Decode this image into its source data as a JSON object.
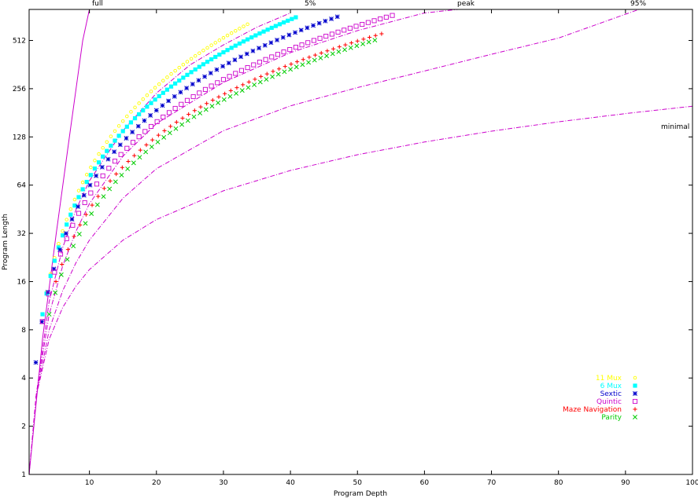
{
  "chart_data": {
    "type": "scatter",
    "xlabel": "Program Depth",
    "ylabel": "Program Length",
    "xlim": [
      1,
      100
    ],
    "ylim": [
      1,
      800
    ],
    "yscale": "log2",
    "xticks": [
      10,
      20,
      30,
      40,
      50,
      60,
      70,
      80,
      90,
      100
    ],
    "yticks": [
      1,
      2,
      4,
      8,
      16,
      32,
      64,
      128,
      256,
      512
    ],
    "grid": false,
    "legend_position": "bottom-right",
    "reference_curves": [
      {
        "label": "full",
        "color": "#cc00cc",
        "points": [
          [
            1,
            1
          ],
          [
            3,
            7
          ],
          [
            5,
            31
          ],
          [
            7,
            127
          ],
          [
            9,
            511
          ],
          [
            10,
            800
          ]
        ]
      },
      {
        "label": "5%",
        "color": "#cc00cc",
        "points": [
          [
            2,
            3
          ],
          [
            4,
            12
          ],
          [
            6,
            26
          ],
          [
            8,
            45
          ],
          [
            10,
            68
          ],
          [
            15,
            140
          ],
          [
            20,
            240
          ],
          [
            25,
            360
          ],
          [
            30,
            480
          ],
          [
            35,
            620
          ],
          [
            40,
            760
          ]
        ]
      },
      {
        "label": "peak",
        "color": "#cc00cc",
        "points": [
          [
            2,
            3
          ],
          [
            4,
            10
          ],
          [
            6,
            20
          ],
          [
            8,
            33
          ],
          [
            10,
            49
          ],
          [
            15,
            97
          ],
          [
            20,
            155
          ],
          [
            30,
            280
          ],
          [
            40,
            430
          ],
          [
            50,
            590
          ],
          [
            60,
            760
          ],
          [
            65,
            800
          ]
        ]
      },
      {
        "label": "95%",
        "color": "#cc00cc",
        "points": [
          [
            2,
            3
          ],
          [
            4,
            8
          ],
          [
            6,
            14
          ],
          [
            8,
            21
          ],
          [
            10,
            29
          ],
          [
            15,
            53
          ],
          [
            20,
            81
          ],
          [
            30,
            140
          ],
          [
            40,
            200
          ],
          [
            50,
            260
          ],
          [
            60,
            330
          ],
          [
            70,
            420
          ],
          [
            80,
            530
          ],
          [
            92,
            800
          ]
        ]
      },
      {
        "label": "minimal",
        "color": "#cc00cc",
        "points": [
          [
            1,
            1
          ],
          [
            2,
            3
          ],
          [
            4,
            7
          ],
          [
            6,
            11
          ],
          [
            8,
            15
          ],
          [
            10,
            19
          ],
          [
            15,
            29
          ],
          [
            20,
            39
          ],
          [
            30,
            59
          ],
          [
            40,
            79
          ],
          [
            50,
            99
          ],
          [
            60,
            119
          ],
          [
            70,
            139
          ],
          [
            80,
            159
          ],
          [
            90,
            179
          ],
          [
            100,
            199
          ]
        ]
      }
    ],
    "series": [
      {
        "name": "11 Mux",
        "color": "#ffff00",
        "marker": "circle",
        "range": [
          3,
          34
        ],
        "start": 10,
        "end": 660
      },
      {
        "name": "6 Mux",
        "color": "#00ffff",
        "marker": "filled-square",
        "range": [
          3,
          41
        ],
        "start": 10,
        "end": 720
      },
      {
        "name": "Sextic",
        "color": "#0000cc",
        "marker": "star",
        "range": [
          2,
          47
        ],
        "start": 5,
        "end": 720
      },
      {
        "name": "Quintic",
        "color": "#cc00cc",
        "marker": "open-square",
        "range": [
          3,
          56
        ],
        "start": 9,
        "end": 750
      },
      {
        "name": "Maze Navigation",
        "color": "#ff0000",
        "marker": "plus",
        "range": [
          5,
          54
        ],
        "start": 16,
        "end": 570
      },
      {
        "name": "Parity",
        "color": "#00cc00",
        "marker": "cross",
        "range": [
          4,
          53
        ],
        "start": 10,
        "end": 520
      }
    ]
  },
  "labels": {
    "full": "full",
    "five_pct": "5%",
    "peak": "peak",
    "ninetyfive": "95%",
    "minimal": "minimal"
  }
}
